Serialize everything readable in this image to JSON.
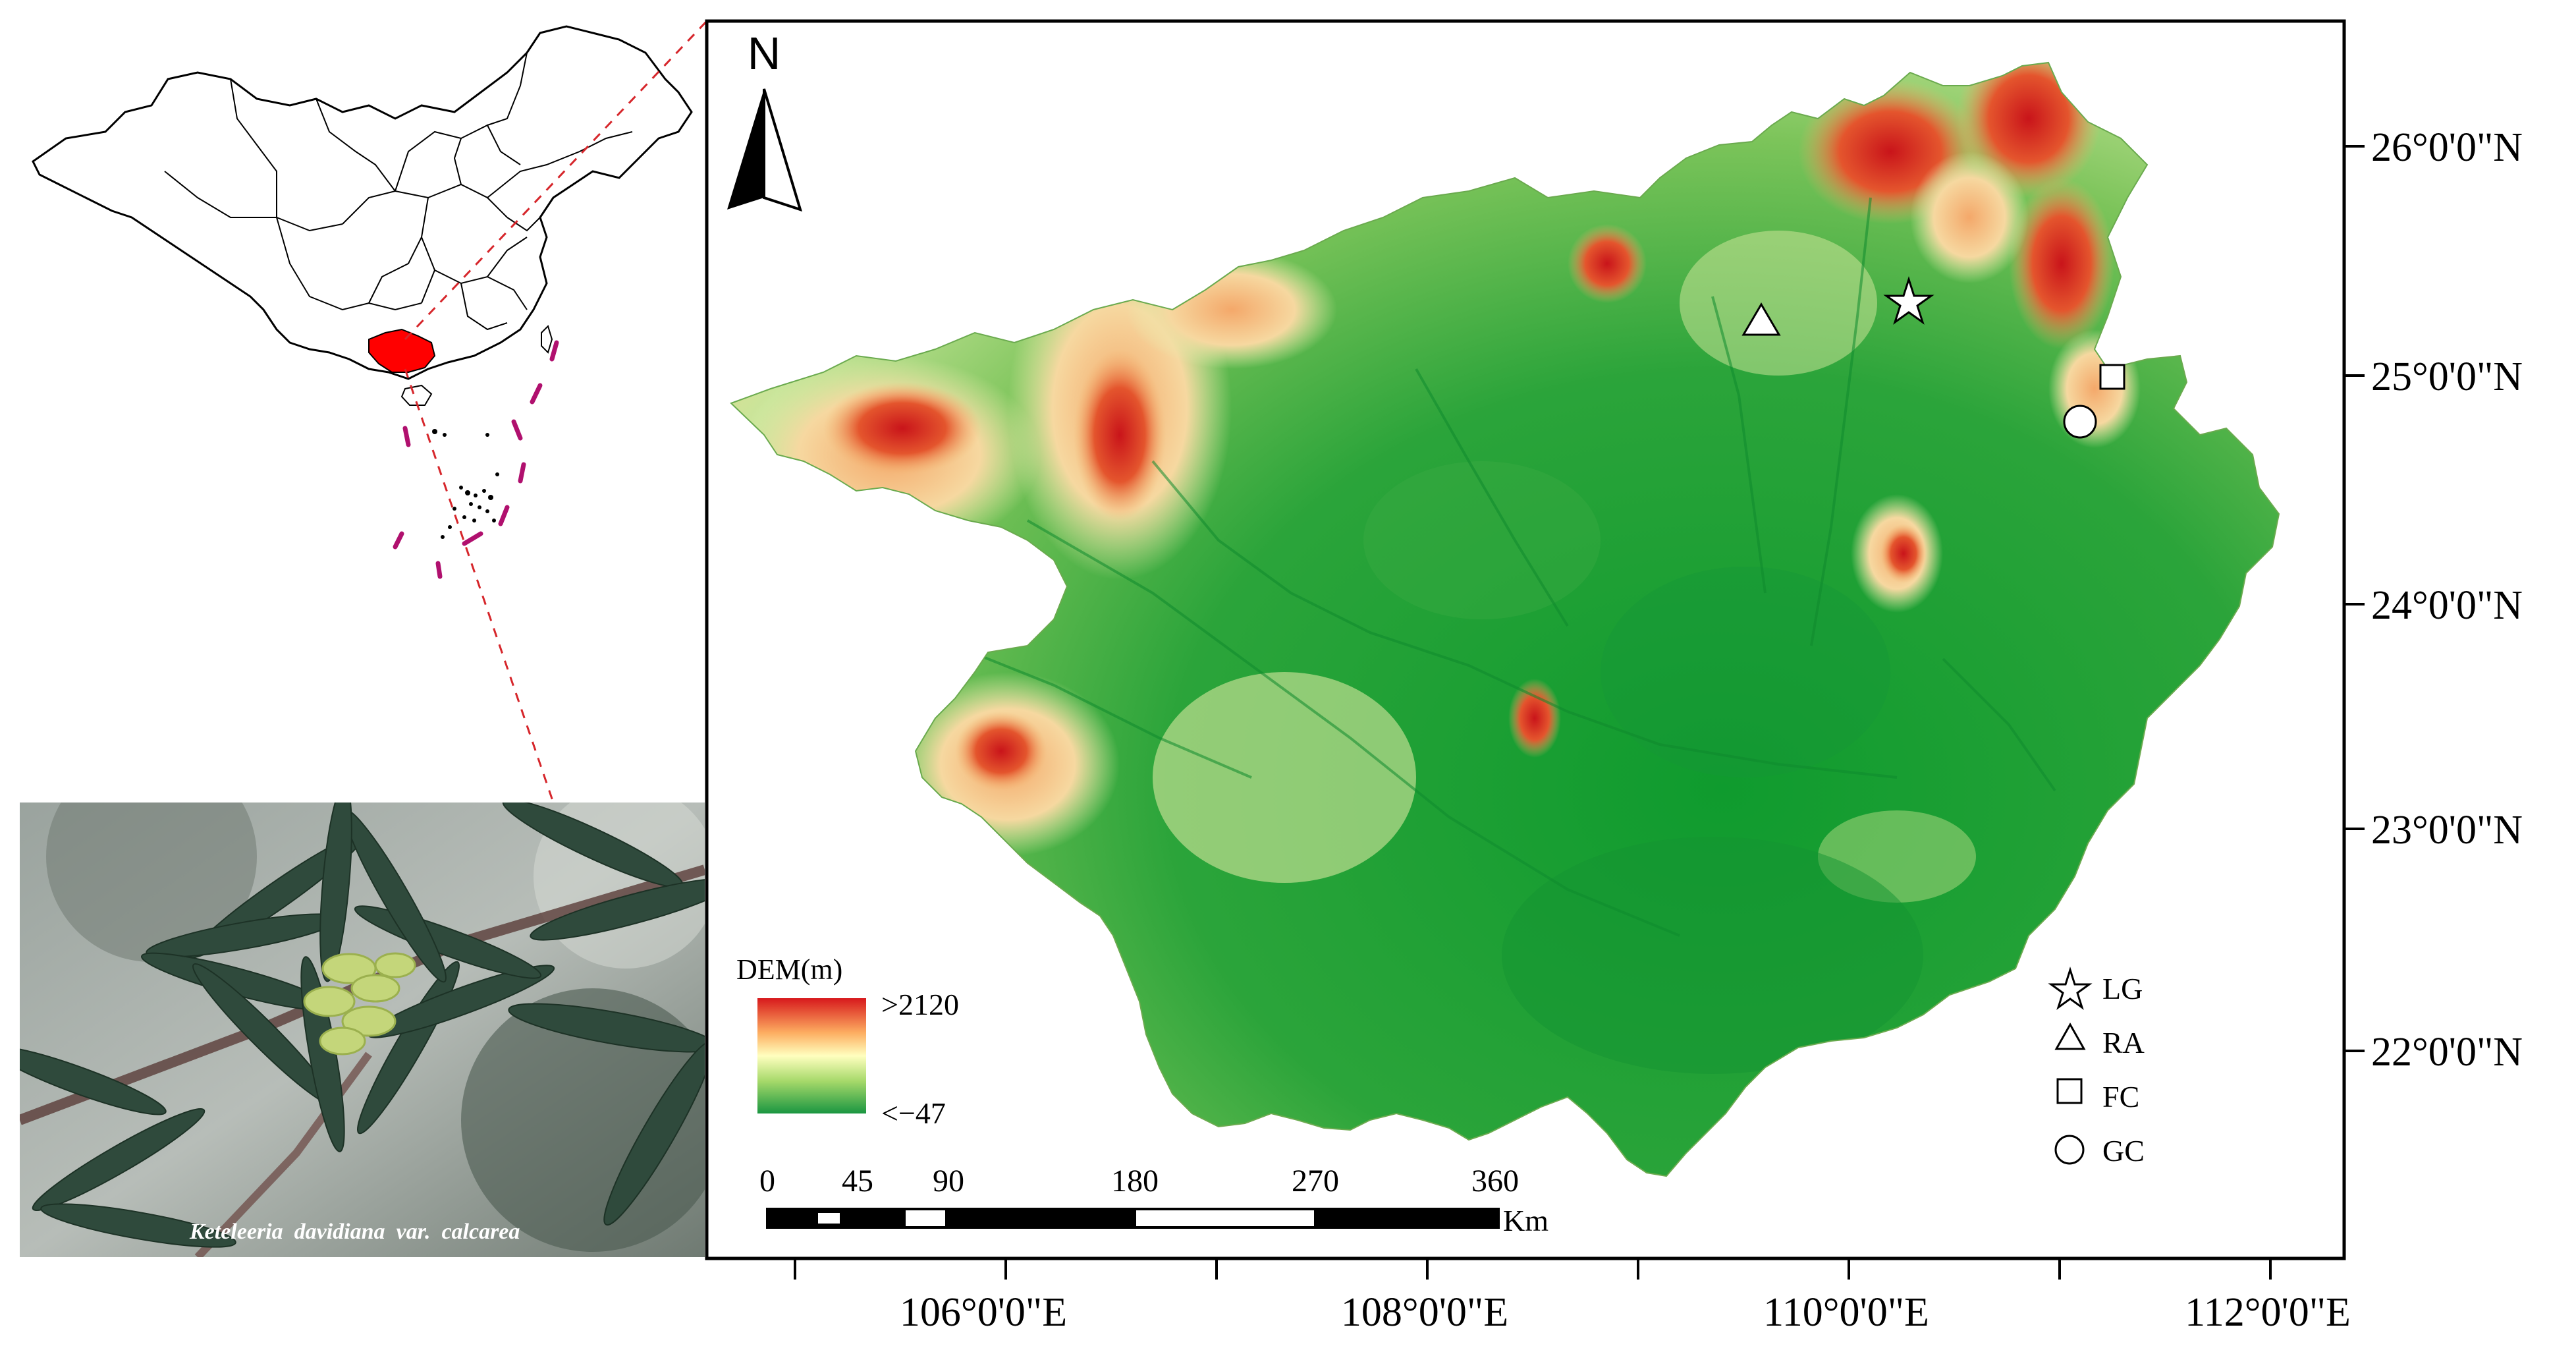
{
  "north_arrow": {
    "label": "N"
  },
  "latitude_labels": [
    "26°0'0\"N",
    "25°0'0\"N",
    "24°0'0\"N",
    "23°0'0\"N",
    "22°0'0\"N"
  ],
  "longitude_labels": [
    "106°0'0\"E",
    "108°0'0\"E",
    "110°0'0\"E",
    "112°0'0\"E"
  ],
  "legend_dem": {
    "title": "DEM(m)",
    "high": ">2120",
    "low": "<−47",
    "colors": [
      "#d7191c",
      "#fdae61",
      "#ffffbf",
      "#a6d96a",
      "#1a9641"
    ]
  },
  "legend_sites": [
    {
      "symbol": "star",
      "label": "LG"
    },
    {
      "symbol": "triangle",
      "label": "RA"
    },
    {
      "symbol": "square",
      "label": "FC"
    },
    {
      "symbol": "circle",
      "label": "GC"
    }
  ],
  "scale_bar": {
    "ticks": [
      "0",
      "45",
      "90",
      "180",
      "270",
      "360"
    ],
    "unit": "Km"
  },
  "photo_caption": "Keteleeria  davidiana  var.  calcarea",
  "inset": {
    "highlight_color": "#ff0000",
    "leader_color": "#d6262b",
    "islands_color": "#b0106e"
  }
}
